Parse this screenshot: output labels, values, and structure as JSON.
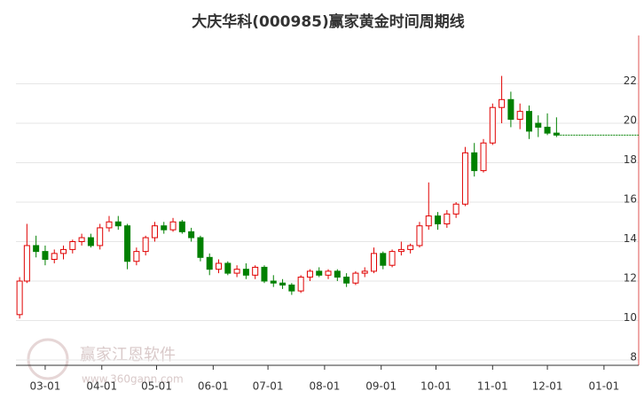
{
  "chart_data": {
    "type": "candlestick",
    "title": "大庆华科(000985)赢家黄金时间周期线",
    "watermark": [
      "赢家江恩软件",
      "www.360gann.com"
    ],
    "up_color": "#e00000",
    "down_color": "#008000",
    "grid": true,
    "xlim": [
      -16,
      325
    ],
    "xticks": [
      {
        "value": 0,
        "label": "03-01"
      },
      {
        "value": 31,
        "label": "04-01"
      },
      {
        "value": 61,
        "label": "05-01"
      },
      {
        "value": 92,
        "label": "06-01"
      },
      {
        "value": 122,
        "label": "07-01"
      },
      {
        "value": 153,
        "label": "08-01"
      },
      {
        "value": 184,
        "label": "09-01"
      },
      {
        "value": 214,
        "label": "10-01"
      },
      {
        "value": 245,
        "label": "11-01"
      },
      {
        "value": 275,
        "label": "12-01"
      },
      {
        "value": 306,
        "label": "01-01"
      }
    ],
    "ylim": [
      8,
      24
    ],
    "yticks": [
      8,
      10,
      12,
      14,
      16,
      18,
      20,
      22
    ],
    "x": [
      -14,
      -10,
      -5,
      0,
      5,
      10,
      15,
      20,
      25,
      30,
      35,
      40,
      45,
      50,
      55,
      60,
      65,
      70,
      75,
      80,
      85,
      90,
      95,
      100,
      105,
      110,
      115,
      120,
      125,
      130,
      135,
      140,
      145,
      150,
      155,
      160,
      165,
      170,
      175,
      180,
      185,
      190,
      195,
      200,
      205,
      210,
      215,
      220,
      225,
      230,
      235,
      240,
      245,
      250,
      255,
      260,
      265,
      270,
      275,
      280
    ],
    "open": [
      10.3,
      12.0,
      13.8,
      13.5,
      13.1,
      13.4,
      13.6,
      14.0,
      14.2,
      13.8,
      14.7,
      15.0,
      14.8,
      13.0,
      13.5,
      14.2,
      14.8,
      14.6,
      15.0,
      14.5,
      14.2,
      13.2,
      12.6,
      12.9,
      12.4,
      12.6,
      12.3,
      12.7,
      12.0,
      11.9,
      11.8,
      11.5,
      12.2,
      12.5,
      12.3,
      12.5,
      12.2,
      11.9,
      12.4,
      12.5,
      13.4,
      12.8,
      13.5,
      13.6,
      13.8,
      14.8,
      15.3,
      14.9,
      15.4,
      15.9,
      18.5,
      17.6,
      19.0,
      20.8,
      21.2,
      20.2,
      20.6,
      20.0,
      19.8,
      19.5
    ],
    "high": [
      12.2,
      14.9,
      14.3,
      13.8,
      13.6,
      13.8,
      14.1,
      14.4,
      14.4,
      14.9,
      15.3,
      15.3,
      14.9,
      13.7,
      14.3,
      15.0,
      15.0,
      15.2,
      15.1,
      14.7,
      14.3,
      13.4,
      13.1,
      13.0,
      12.8,
      12.9,
      12.8,
      12.8,
      12.3,
      12.1,
      11.9,
      12.3,
      12.6,
      12.7,
      12.6,
      12.6,
      12.4,
      12.5,
      12.7,
      13.7,
      13.5,
      13.6,
      14.0,
      13.9,
      15.0,
      17.0,
      15.5,
      15.6,
      16.0,
      18.8,
      19.0,
      19.2,
      21.0,
      22.4,
      21.6,
      21.0,
      20.9,
      20.4,
      20.5,
      20.3
    ],
    "low": [
      10.1,
      11.9,
      13.2,
      12.8,
      12.9,
      13.1,
      13.4,
      13.8,
      13.7,
      13.6,
      14.5,
      14.6,
      12.6,
      12.8,
      13.3,
      14.0,
      14.4,
      14.5,
      14.4,
      14.0,
      13.0,
      12.3,
      12.4,
      12.3,
      12.2,
      12.1,
      12.1,
      11.9,
      11.7,
      11.6,
      11.3,
      11.4,
      12.0,
      12.2,
      12.1,
      12.0,
      11.7,
      11.8,
      12.2,
      12.4,
      12.6,
      12.7,
      13.3,
      13.4,
      13.7,
      14.6,
      14.6,
      14.7,
      15.2,
      15.8,
      17.3,
      17.5,
      18.9,
      20.0,
      19.8,
      19.7,
      19.2,
      19.3,
      19.4,
      19.3
    ],
    "close": [
      12.0,
      13.8,
      13.5,
      13.1,
      13.4,
      13.6,
      14.0,
      14.2,
      13.8,
      14.7,
      15.0,
      14.8,
      13.0,
      13.5,
      14.2,
      14.8,
      14.6,
      15.0,
      14.5,
      14.2,
      13.2,
      12.6,
      12.9,
      12.4,
      12.6,
      12.3,
      12.7,
      12.0,
      11.9,
      11.8,
      11.5,
      12.2,
      12.5,
      12.3,
      12.5,
      12.2,
      11.9,
      12.4,
      12.5,
      13.4,
      12.8,
      13.5,
      13.6,
      13.8,
      14.8,
      15.3,
      14.9,
      15.4,
      15.9,
      18.5,
      17.6,
      19.0,
      20.8,
      21.2,
      20.2,
      20.6,
      19.6,
      19.8,
      19.5,
      19.4
    ]
  }
}
